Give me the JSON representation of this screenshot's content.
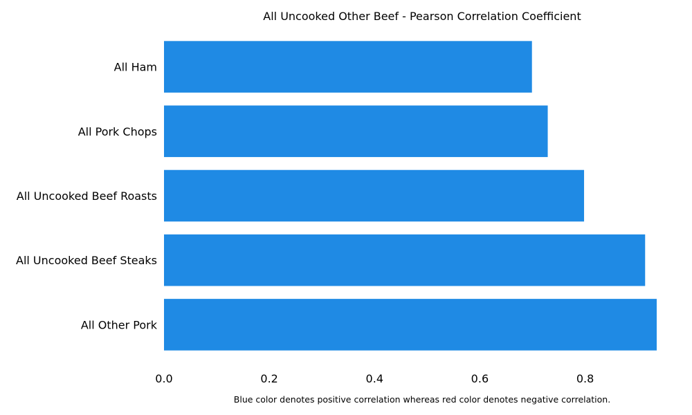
{
  "chart_data": {
    "type": "bar",
    "orientation": "horizontal",
    "title": "All Uncooked Other Beef - Pearson Correlation Coefficient",
    "categories": [
      "All Ham",
      "All Pork Chops",
      "All Uncooked Beef Roasts",
      "All Uncooked Beef Steaks",
      "All Other Pork"
    ],
    "values": [
      0.699,
      0.729,
      0.798,
      0.914,
      0.936
    ],
    "xlim": [
      0.0,
      0.936
    ],
    "xticks": [
      "0.0",
      "0.2",
      "0.4",
      "0.6",
      "0.8"
    ],
    "xtick_values": [
      0.0,
      0.2,
      0.4,
      0.6,
      0.8
    ],
    "xlabel": "",
    "ylabel": "",
    "bar_color": "#1f8ae4",
    "grid": false,
    "footnote": "Blue color denotes positive correlation whereas red color denotes negative correlation."
  }
}
